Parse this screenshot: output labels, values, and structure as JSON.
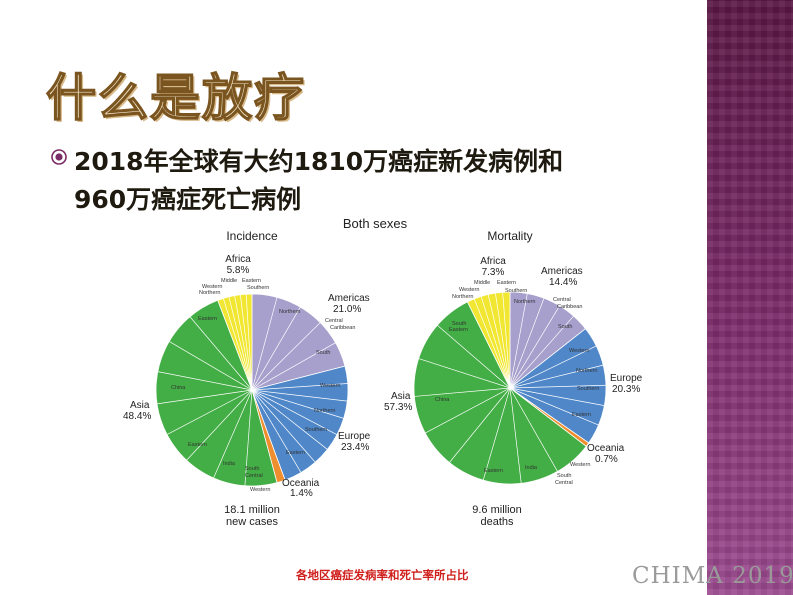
{
  "slide": {
    "title": "什么是放疗",
    "bullet_line1": "2018年全球有大约1810万癌症新发病例和",
    "bullet_line2": "960万癌症死亡病例",
    "caption": "各地区癌症发病率和死亡率所占比",
    "footer": "CHIMA 2019"
  },
  "figure": {
    "header": "Both sexes",
    "incidence": {
      "title": "Incidence",
      "total_line1": "18.1 million",
      "total_line2": "new cases",
      "Africa": "Africa",
      "Africa_pct": "5.8%",
      "Americas": "Americas",
      "Americas_pct": "21.0%",
      "Asia": "Asia",
      "Asia_pct": "48.4%",
      "Europe": "Europe",
      "Europe_pct": "23.4%",
      "Oceania": "Oceania",
      "Oceania_pct": "1.4%",
      "sub": {
        "Middle": "Middle",
        "EasternAf": "Eastern",
        "Southern": "Southern",
        "Western": "Western",
        "Northern": "Northern",
        "NorthernAm": "Northern",
        "Central": "Central",
        "Caribbean": "Caribbean",
        "South": "South",
        "WesternEu": "Western",
        "NorthernEu": "Northern",
        "SouthernEu": "Southern",
        "EasternEu": "Eastern",
        "EasternAs": "Eastern",
        "China": "China",
        "EasternAs2": "Eastern",
        "India": "India",
        "SouthCentral1": "South",
        "SouthCentral2": "Central",
        "WesternAs": "Western"
      }
    },
    "mortality": {
      "title": "Mortality",
      "total_line1": "9.6 million",
      "total_line2": "deaths",
      "Africa": "Africa",
      "Africa_pct": "7.3%",
      "Americas": "Americas",
      "Americas_pct": "14.4%",
      "Asia": "Asia",
      "Asia_pct": "57.3%",
      "Europe": "Europe",
      "Europe_pct": "20.3%",
      "Oceania": "Oceania",
      "Oceania_pct": "0.7%",
      "sub": {
        "Middle": "Middle",
        "EasternAf": "Eastern",
        "Southern": "Southern",
        "Western": "Western",
        "Northern": "Northern",
        "NorthernAm": "Northern",
        "Central": "Central",
        "Caribbean": "Caribbean",
        "South": "South",
        "WesternEu": "Western",
        "NorthernEu": "Northern",
        "SouthernEu": "Southern",
        "EasternEu": "Eastern",
        "SouthEastern1": "South",
        "SouthEastern2": "Eastern",
        "China": "China",
        "EasternAs": "Eastern",
        "India": "India",
        "WesternAs": "Western",
        "SouthCentral1": "South",
        "SouthCentral2": "Central"
      }
    }
  },
  "chart_data": [
    {
      "type": "pie",
      "title": "Incidence",
      "categories": [
        "Americas",
        "Europe",
        "Oceania",
        "Asia",
        "Africa"
      ],
      "values": [
        21.0,
        23.4,
        1.4,
        48.4,
        5.8
      ],
      "colors": [
        "#a79fcc",
        "#4f87c9",
        "#ee8e2f",
        "#43ae45",
        "#f1e733"
      ],
      "total": "18.1 million new cases"
    },
    {
      "type": "pie",
      "title": "Mortality",
      "categories": [
        "Americas",
        "Europe",
        "Oceania",
        "Asia",
        "Africa"
      ],
      "values": [
        14.4,
        20.3,
        0.7,
        57.3,
        7.3
      ],
      "colors": [
        "#a79fcc",
        "#4f87c9",
        "#ee8e2f",
        "#43ae45",
        "#f1e733"
      ],
      "total": "9.6 million deaths"
    }
  ]
}
